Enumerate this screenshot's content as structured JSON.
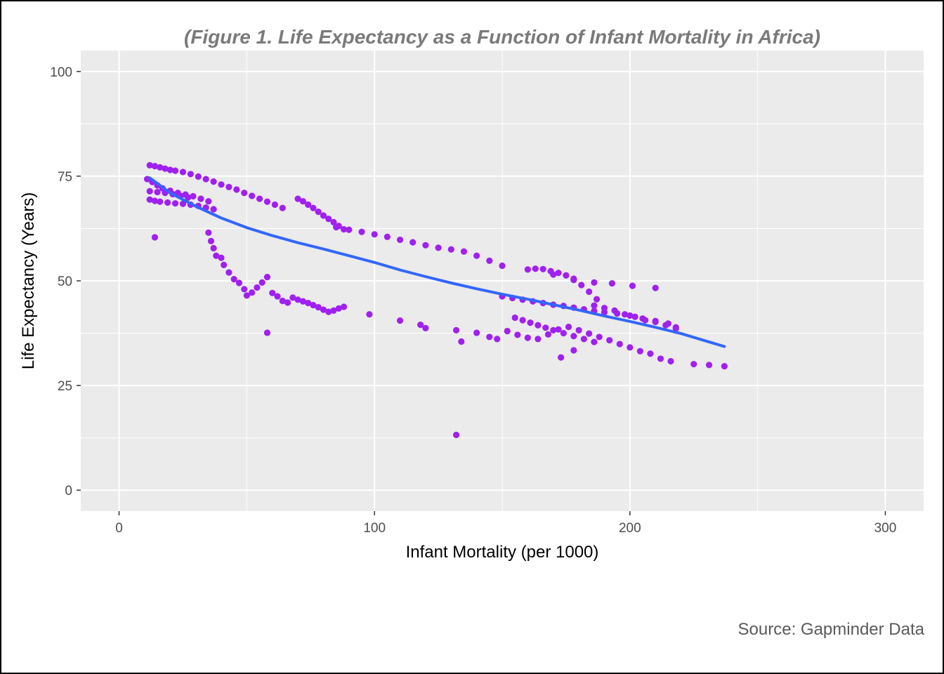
{
  "chart_data": {
    "type": "scatter",
    "title": "(Figure 1. Life Expectancy as a Function of Infant Mortality in Africa)",
    "xlabel": "Infant Mortality (per 1000)",
    "ylabel": "Life Expectancy (Years)",
    "caption": "Source: Gapminder Data",
    "xlim": [
      -15,
      315
    ],
    "ylim": [
      -5,
      105
    ],
    "x_ticks": [
      0,
      100,
      200,
      300
    ],
    "x_tick_labels": [
      "0",
      "100",
      "200",
      "300"
    ],
    "y_ticks": [
      0,
      25,
      50,
      75,
      100
    ],
    "y_tick_labels": [
      "0",
      "25",
      "50",
      "75",
      "100"
    ],
    "grid": true,
    "point_color": "#A020F0",
    "smooth_color": "#3366FF",
    "panel_color": "#EBEBEB",
    "series": [
      {
        "name": "countries",
        "points": [
          [
            12,
            77.6
          ],
          [
            14,
            77.4
          ],
          [
            16,
            77.1
          ],
          [
            18,
            76.8
          ],
          [
            20,
            76.5
          ],
          [
            22,
            76.3
          ],
          [
            25,
            76.0
          ],
          [
            28,
            75.5
          ],
          [
            31,
            74.9
          ],
          [
            34,
            74.3
          ],
          [
            37,
            73.7
          ],
          [
            40,
            73.0
          ],
          [
            43,
            72.4
          ],
          [
            46,
            71.8
          ],
          [
            49,
            71.0
          ],
          [
            52,
            70.3
          ],
          [
            55,
            69.6
          ],
          [
            58,
            68.9
          ],
          [
            61,
            68.2
          ],
          [
            64,
            67.4
          ],
          [
            11,
            74.3
          ],
          [
            13,
            73.6
          ],
          [
            15,
            72.8
          ],
          [
            17,
            72.1
          ],
          [
            20,
            71.5
          ],
          [
            23,
            71.0
          ],
          [
            26,
            70.6
          ],
          [
            29,
            70.2
          ],
          [
            32,
            69.6
          ],
          [
            35,
            69.0
          ],
          [
            12,
            69.4
          ],
          [
            14,
            69.1
          ],
          [
            16,
            68.9
          ],
          [
            19,
            68.7
          ],
          [
            22,
            68.5
          ],
          [
            25,
            68.4
          ],
          [
            28,
            68.2
          ],
          [
            31,
            67.9
          ],
          [
            34,
            67.5
          ],
          [
            37,
            67.1
          ],
          [
            12,
            71.4
          ],
          [
            15,
            71.2
          ],
          [
            18,
            71.0
          ],
          [
            21,
            70.7
          ],
          [
            24,
            70.3
          ],
          [
            27,
            69.9
          ],
          [
            14,
            60.4
          ],
          [
            58,
            37.6
          ],
          [
            132,
            13.2
          ],
          [
            237,
            29.6
          ],
          [
            231,
            29.9
          ],
          [
            225,
            30.1
          ],
          [
            173,
            31.7
          ],
          [
            178,
            33.4
          ],
          [
            210,
            48.3
          ],
          [
            201,
            48.8
          ],
          [
            193,
            49.4
          ],
          [
            186,
            49.6
          ],
          [
            178,
            50.2
          ],
          [
            170,
            51.5
          ],
          [
            134,
            35.5
          ],
          [
            132,
            38.2
          ],
          [
            120,
            38.7
          ],
          [
            118,
            39.5
          ],
          [
            110,
            40.5
          ],
          [
            98,
            42.0
          ],
          [
            70,
            69.6
          ],
          [
            72,
            69.0
          ],
          [
            74,
            68.2
          ],
          [
            76,
            67.4
          ],
          [
            78,
            66.5
          ],
          [
            80,
            65.6
          ],
          [
            82,
            64.8
          ],
          [
            84,
            64.0
          ],
          [
            86,
            63.1
          ],
          [
            88,
            62.3
          ],
          [
            35,
            61.5
          ],
          [
            36,
            59.5
          ],
          [
            37,
            57.8
          ],
          [
            38,
            56.0
          ],
          [
            40,
            55.5
          ],
          [
            41,
            53.8
          ],
          [
            43,
            52.0
          ],
          [
            45,
            50.4
          ],
          [
            47,
            49.5
          ],
          [
            49,
            48.0
          ],
          [
            50,
            46.5
          ],
          [
            52,
            47.2
          ],
          [
            54,
            48.4
          ],
          [
            56,
            49.6
          ],
          [
            58,
            50.9
          ],
          [
            60,
            47.1
          ],
          [
            62,
            46.3
          ],
          [
            64,
            45.2
          ],
          [
            66,
            44.8
          ],
          [
            68,
            46.0
          ],
          [
            70,
            45.5
          ],
          [
            72,
            45.1
          ],
          [
            74,
            44.7
          ],
          [
            76,
            44.2
          ],
          [
            78,
            43.7
          ],
          [
            80,
            43.1
          ],
          [
            82,
            42.6
          ],
          [
            84,
            42.9
          ],
          [
            86,
            43.4
          ],
          [
            88,
            43.8
          ],
          [
            140,
            37.6
          ],
          [
            145,
            36.6
          ],
          [
            148,
            36.1
          ],
          [
            152,
            38.0
          ],
          [
            156,
            37.1
          ],
          [
            160,
            36.4
          ],
          [
            164,
            36.1
          ],
          [
            168,
            37.2
          ],
          [
            172,
            38.4
          ],
          [
            176,
            39.0
          ],
          [
            180,
            38.2
          ],
          [
            184,
            37.4
          ],
          [
            188,
            36.6
          ],
          [
            192,
            35.8
          ],
          [
            196,
            34.9
          ],
          [
            200,
            34.1
          ],
          [
            204,
            33.2
          ],
          [
            208,
            32.6
          ],
          [
            212,
            31.4
          ],
          [
            216,
            30.8
          ],
          [
            186,
            44.1
          ],
          [
            190,
            43.5
          ],
          [
            194,
            42.9
          ],
          [
            198,
            42.0
          ],
          [
            202,
            41.4
          ],
          [
            206,
            40.6
          ],
          [
            210,
            40.2
          ],
          [
            214,
            39.4
          ],
          [
            218,
            38.6
          ],
          [
            160,
            52.7
          ],
          [
            163,
            52.9
          ],
          [
            166,
            52.8
          ],
          [
            169,
            52.3
          ],
          [
            172,
            51.9
          ],
          [
            175,
            51.3
          ],
          [
            178,
            50.5
          ],
          [
            181,
            49.0
          ],
          [
            184,
            47.4
          ],
          [
            187,
            45.6
          ],
          [
            150,
            53.6
          ],
          [
            145,
            54.8
          ],
          [
            140,
            56.0
          ],
          [
            135,
            57.0
          ],
          [
            130,
            57.5
          ],
          [
            125,
            57.9
          ],
          [
            120,
            58.5
          ],
          [
            115,
            59.2
          ],
          [
            110,
            59.8
          ],
          [
            105,
            60.5
          ],
          [
            100,
            61.1
          ],
          [
            95,
            61.7
          ],
          [
            90,
            62.2
          ],
          [
            85,
            62.8
          ],
          [
            155,
            41.2
          ],
          [
            158,
            40.6
          ],
          [
            161,
            40.0
          ],
          [
            164,
            39.4
          ],
          [
            167,
            38.8
          ],
          [
            170,
            38.2
          ],
          [
            174,
            37.5
          ],
          [
            178,
            36.8
          ],
          [
            182,
            36.1
          ],
          [
            186,
            35.4
          ],
          [
            150,
            46.3
          ],
          [
            154,
            45.9
          ],
          [
            158,
            45.5
          ],
          [
            162,
            45.1
          ],
          [
            166,
            44.7
          ],
          [
            170,
            44.3
          ],
          [
            174,
            44.0
          ],
          [
            178,
            43.6
          ],
          [
            182,
            43.2
          ],
          [
            186,
            42.8
          ],
          [
            190,
            42.5
          ],
          [
            195,
            42.2
          ],
          [
            200,
            41.7
          ],
          [
            205,
            41.0
          ],
          [
            210,
            40.4
          ],
          [
            215,
            39.8
          ],
          [
            218,
            38.9
          ]
        ]
      }
    ],
    "smooth_line": {
      "x": [
        12,
        20,
        30,
        40,
        50,
        60,
        70,
        80,
        90,
        100,
        110,
        120,
        130,
        140,
        150,
        160,
        170,
        180,
        190,
        200,
        210,
        220,
        230,
        237
      ],
      "y": [
        74.6,
        71.0,
        67.8,
        65.0,
        62.7,
        60.8,
        59.1,
        57.6,
        56.0,
        54.4,
        52.6,
        51.0,
        49.5,
        48.1,
        46.8,
        45.6,
        44.3,
        43.0,
        41.6,
        40.3,
        38.9,
        37.4,
        35.6,
        34.3
      ]
    }
  }
}
